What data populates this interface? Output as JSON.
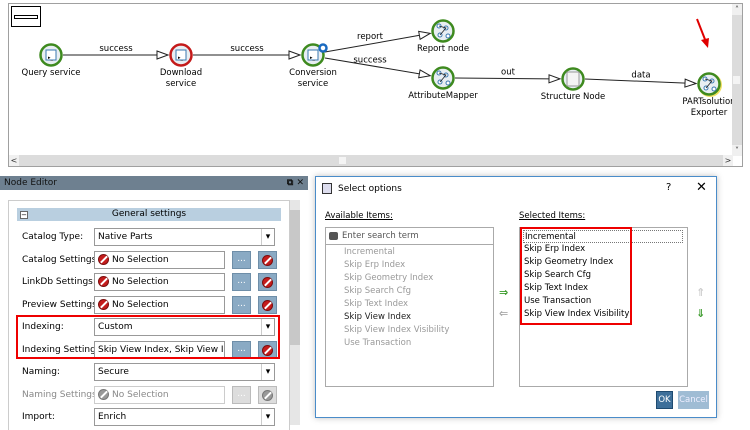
{
  "workflow": {
    "nodes": [
      {
        "label": [
          "Query service"
        ],
        "status": "green",
        "kind": "service"
      },
      {
        "label": [
          "Download",
          "service"
        ],
        "status": "red",
        "kind": "service"
      },
      {
        "label": [
          "Conversion",
          "service"
        ],
        "status": "green",
        "kind": "service"
      },
      {
        "label": [
          "Report node"
        ],
        "status": "green",
        "kind": "mapper"
      },
      {
        "label": [
          "AttributeMapper"
        ],
        "status": "green",
        "kind": "mapper"
      },
      {
        "label": [
          "Structure Node"
        ],
        "status": "green",
        "kind": "structure"
      },
      {
        "label": [
          "PARTsolution",
          "Exporter"
        ],
        "status": "green",
        "kind": "mapper"
      }
    ],
    "edges": [
      {
        "from": 0,
        "to": 1,
        "label": "success"
      },
      {
        "from": 1,
        "to": 2,
        "label": "success"
      },
      {
        "from": 2,
        "to": 3,
        "label": "report"
      },
      {
        "from": 2,
        "to": 4,
        "label": "success"
      },
      {
        "from": 4,
        "to": 5,
        "label": "out"
      },
      {
        "from": 5,
        "to": 6,
        "label": "data"
      }
    ],
    "colors": {
      "green": "#3e8a1f",
      "red": "#c41a1a",
      "annotation": "#e00000"
    }
  },
  "node_editor": {
    "title": "Node Editor",
    "section": "General settings",
    "rows": [
      {
        "label": "Catalog Type:",
        "value": "Native Parts",
        "type": "dropdown"
      },
      {
        "label": "Catalog Settings:",
        "value": "No Selection",
        "type": "picker"
      },
      {
        "label": "LinkDb Settings:",
        "value": "No Selection",
        "type": "picker"
      },
      {
        "label": "Preview Settings:",
        "value": "No Selection",
        "type": "picker"
      },
      {
        "label": "Indexing:",
        "value": "Custom",
        "type": "dropdown"
      },
      {
        "label": "Indexing Settings:",
        "value": "Skip View Index, Skip View Index Visibility",
        "type": "picker"
      },
      {
        "label": "Naming:",
        "value": "Secure",
        "type": "dropdown"
      },
      {
        "label": "Naming Settings:",
        "value": "No Selection",
        "type": "picker",
        "disabled": true
      },
      {
        "label": "Import:",
        "value": "Enrich",
        "type": "dropdown"
      }
    ],
    "ellipsis": "..."
  },
  "dialog": {
    "title": "Select options",
    "help": "?",
    "close": "✕",
    "available_header": "Available Items:",
    "selected_header": "Selected Items:",
    "search_placeholder": "Enter search term",
    "available": [
      "Incremental",
      "Skip Erp Index",
      "Skip Geometry Index",
      "Skip Search Cfg",
      "Skip Text Index",
      "Skip View Index",
      "Skip View Index Visibility",
      "Use Transaction"
    ],
    "available_highlighted": "Skip View Index",
    "selected": [
      "Incremental",
      "Skip Erp Index",
      "Skip Geometry Index",
      "Skip Search Cfg",
      "Skip Text Index",
      "Use Transaction",
      "Skip View Index Visibility"
    ],
    "ok": "OK",
    "cancel": "Cancel"
  }
}
